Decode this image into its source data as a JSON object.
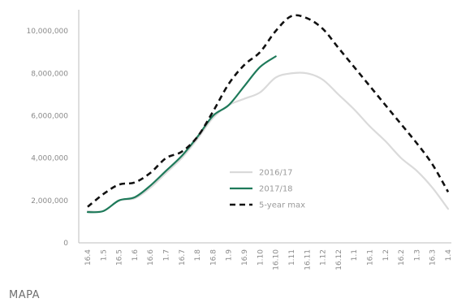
{
  "source_label": "MAPA",
  "chart_data": {
    "type": "line",
    "categories": [
      "16.4",
      "1.5",
      "16.5",
      "1.6",
      "16.6",
      "1.7",
      "16.7",
      "1.8",
      "16.8",
      "1.9",
      "16.9",
      "1.10",
      "16.10",
      "1.11",
      "16.11",
      "1.12",
      "16.12",
      "1.1",
      "16.1",
      "1.2",
      "16.2",
      "1.3",
      "16.3",
      "1.4"
    ],
    "ylim": [
      0,
      11000000
    ],
    "y_ticks": [
      0,
      2000000,
      4000000,
      6000000,
      8000000,
      10000000
    ],
    "y_tick_labels": [
      "0",
      "2,000,000",
      "4,000,000",
      "6,000,000",
      "8,000,000",
      "10,000,000"
    ],
    "grid": false,
    "legend_position": "center",
    "series": [
      {
        "name": "2016/17",
        "color": "#dadada",
        "style": "solid",
        "values": [
          1500000,
          1500000,
          2000000,
          2100000,
          2600000,
          3300000,
          4000000,
          4900000,
          5900000,
          6500000,
          6800000,
          7100000,
          7800000,
          8000000,
          8000000,
          7700000,
          7000000,
          6300000,
          5500000,
          4800000,
          4000000,
          3400000,
          2600000,
          1600000
        ]
      },
      {
        "name": "2017/18",
        "color": "#1e7a5a",
        "style": "solid",
        "values": [
          1450000,
          1500000,
          2000000,
          2150000,
          2700000,
          3400000,
          4100000,
          5000000,
          6000000,
          6500000,
          7400000,
          8300000,
          8800000,
          null,
          null,
          null,
          null,
          null,
          null,
          null,
          null,
          null,
          null,
          null
        ]
      },
      {
        "name": "5-year max",
        "color": "#111111",
        "style": "dashed",
        "values": [
          1700000,
          2300000,
          2750000,
          2850000,
          3300000,
          4000000,
          4300000,
          5000000,
          6200000,
          7500000,
          8400000,
          9000000,
          10000000,
          10700000,
          10600000,
          10100000,
          9200000,
          8300000,
          7400000,
          6500000,
          5600000,
          4700000,
          3700000,
          2400000
        ]
      }
    ]
  }
}
